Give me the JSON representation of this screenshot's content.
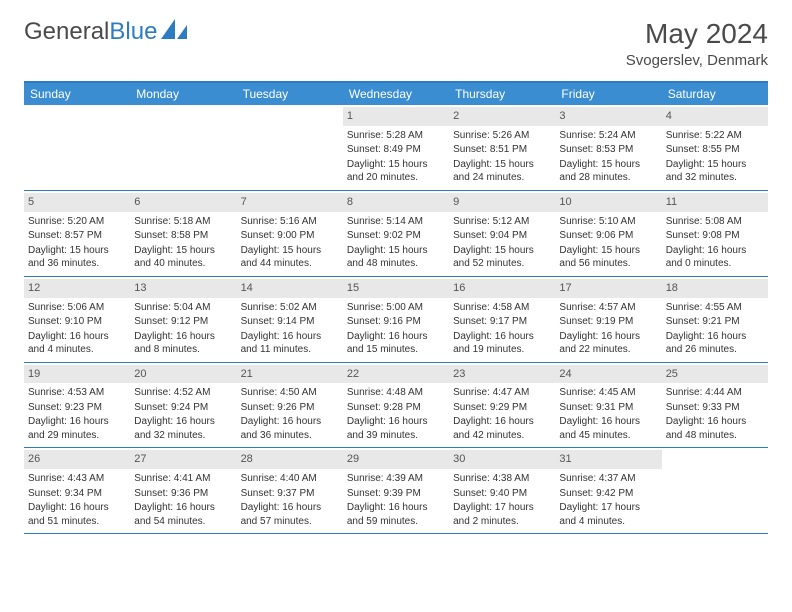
{
  "logo": {
    "text1": "General",
    "text2": "Blue"
  },
  "title": "May 2024",
  "location": "Svogerslev, Denmark",
  "colors": {
    "header_bg": "#3a8dd0",
    "border": "#2d7cc1",
    "daynum_bg": "#e8e8e8",
    "text": "#333333"
  },
  "weekdays": [
    "Sunday",
    "Monday",
    "Tuesday",
    "Wednesday",
    "Thursday",
    "Friday",
    "Saturday"
  ],
  "weeks": [
    [
      {
        "n": "",
        "sr": "",
        "ss": "",
        "dl": ""
      },
      {
        "n": "",
        "sr": "",
        "ss": "",
        "dl": ""
      },
      {
        "n": "",
        "sr": "",
        "ss": "",
        "dl": ""
      },
      {
        "n": "1",
        "sr": "Sunrise: 5:28 AM",
        "ss": "Sunset: 8:49 PM",
        "dl": "Daylight: 15 hours and 20 minutes."
      },
      {
        "n": "2",
        "sr": "Sunrise: 5:26 AM",
        "ss": "Sunset: 8:51 PM",
        "dl": "Daylight: 15 hours and 24 minutes."
      },
      {
        "n": "3",
        "sr": "Sunrise: 5:24 AM",
        "ss": "Sunset: 8:53 PM",
        "dl": "Daylight: 15 hours and 28 minutes."
      },
      {
        "n": "4",
        "sr": "Sunrise: 5:22 AM",
        "ss": "Sunset: 8:55 PM",
        "dl": "Daylight: 15 hours and 32 minutes."
      }
    ],
    [
      {
        "n": "5",
        "sr": "Sunrise: 5:20 AM",
        "ss": "Sunset: 8:57 PM",
        "dl": "Daylight: 15 hours and 36 minutes."
      },
      {
        "n": "6",
        "sr": "Sunrise: 5:18 AM",
        "ss": "Sunset: 8:58 PM",
        "dl": "Daylight: 15 hours and 40 minutes."
      },
      {
        "n": "7",
        "sr": "Sunrise: 5:16 AM",
        "ss": "Sunset: 9:00 PM",
        "dl": "Daylight: 15 hours and 44 minutes."
      },
      {
        "n": "8",
        "sr": "Sunrise: 5:14 AM",
        "ss": "Sunset: 9:02 PM",
        "dl": "Daylight: 15 hours and 48 minutes."
      },
      {
        "n": "9",
        "sr": "Sunrise: 5:12 AM",
        "ss": "Sunset: 9:04 PM",
        "dl": "Daylight: 15 hours and 52 minutes."
      },
      {
        "n": "10",
        "sr": "Sunrise: 5:10 AM",
        "ss": "Sunset: 9:06 PM",
        "dl": "Daylight: 15 hours and 56 minutes."
      },
      {
        "n": "11",
        "sr": "Sunrise: 5:08 AM",
        "ss": "Sunset: 9:08 PM",
        "dl": "Daylight: 16 hours and 0 minutes."
      }
    ],
    [
      {
        "n": "12",
        "sr": "Sunrise: 5:06 AM",
        "ss": "Sunset: 9:10 PM",
        "dl": "Daylight: 16 hours and 4 minutes."
      },
      {
        "n": "13",
        "sr": "Sunrise: 5:04 AM",
        "ss": "Sunset: 9:12 PM",
        "dl": "Daylight: 16 hours and 8 minutes."
      },
      {
        "n": "14",
        "sr": "Sunrise: 5:02 AM",
        "ss": "Sunset: 9:14 PM",
        "dl": "Daylight: 16 hours and 11 minutes."
      },
      {
        "n": "15",
        "sr": "Sunrise: 5:00 AM",
        "ss": "Sunset: 9:16 PM",
        "dl": "Daylight: 16 hours and 15 minutes."
      },
      {
        "n": "16",
        "sr": "Sunrise: 4:58 AM",
        "ss": "Sunset: 9:17 PM",
        "dl": "Daylight: 16 hours and 19 minutes."
      },
      {
        "n": "17",
        "sr": "Sunrise: 4:57 AM",
        "ss": "Sunset: 9:19 PM",
        "dl": "Daylight: 16 hours and 22 minutes."
      },
      {
        "n": "18",
        "sr": "Sunrise: 4:55 AM",
        "ss": "Sunset: 9:21 PM",
        "dl": "Daylight: 16 hours and 26 minutes."
      }
    ],
    [
      {
        "n": "19",
        "sr": "Sunrise: 4:53 AM",
        "ss": "Sunset: 9:23 PM",
        "dl": "Daylight: 16 hours and 29 minutes."
      },
      {
        "n": "20",
        "sr": "Sunrise: 4:52 AM",
        "ss": "Sunset: 9:24 PM",
        "dl": "Daylight: 16 hours and 32 minutes."
      },
      {
        "n": "21",
        "sr": "Sunrise: 4:50 AM",
        "ss": "Sunset: 9:26 PM",
        "dl": "Daylight: 16 hours and 36 minutes."
      },
      {
        "n": "22",
        "sr": "Sunrise: 4:48 AM",
        "ss": "Sunset: 9:28 PM",
        "dl": "Daylight: 16 hours and 39 minutes."
      },
      {
        "n": "23",
        "sr": "Sunrise: 4:47 AM",
        "ss": "Sunset: 9:29 PM",
        "dl": "Daylight: 16 hours and 42 minutes."
      },
      {
        "n": "24",
        "sr": "Sunrise: 4:45 AM",
        "ss": "Sunset: 9:31 PM",
        "dl": "Daylight: 16 hours and 45 minutes."
      },
      {
        "n": "25",
        "sr": "Sunrise: 4:44 AM",
        "ss": "Sunset: 9:33 PM",
        "dl": "Daylight: 16 hours and 48 minutes."
      }
    ],
    [
      {
        "n": "26",
        "sr": "Sunrise: 4:43 AM",
        "ss": "Sunset: 9:34 PM",
        "dl": "Daylight: 16 hours and 51 minutes."
      },
      {
        "n": "27",
        "sr": "Sunrise: 4:41 AM",
        "ss": "Sunset: 9:36 PM",
        "dl": "Daylight: 16 hours and 54 minutes."
      },
      {
        "n": "28",
        "sr": "Sunrise: 4:40 AM",
        "ss": "Sunset: 9:37 PM",
        "dl": "Daylight: 16 hours and 57 minutes."
      },
      {
        "n": "29",
        "sr": "Sunrise: 4:39 AM",
        "ss": "Sunset: 9:39 PM",
        "dl": "Daylight: 16 hours and 59 minutes."
      },
      {
        "n": "30",
        "sr": "Sunrise: 4:38 AM",
        "ss": "Sunset: 9:40 PM",
        "dl": "Daylight: 17 hours and 2 minutes."
      },
      {
        "n": "31",
        "sr": "Sunrise: 4:37 AM",
        "ss": "Sunset: 9:42 PM",
        "dl": "Daylight: 17 hours and 4 minutes."
      },
      {
        "n": "",
        "sr": "",
        "ss": "",
        "dl": ""
      }
    ]
  ]
}
